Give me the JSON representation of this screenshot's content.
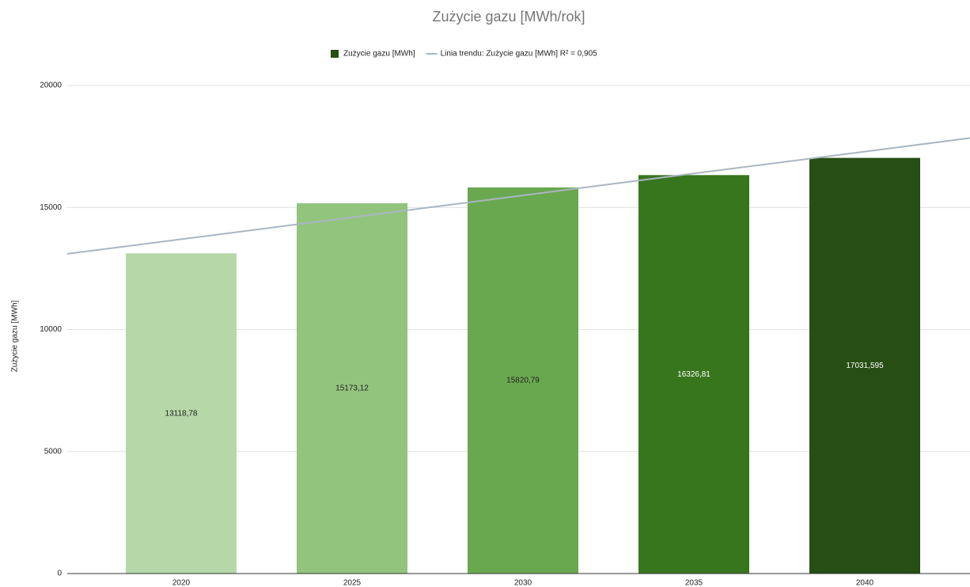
{
  "chart_data": {
    "type": "bar",
    "title": "Zużycie gazu [MWh/rok]",
    "y_label": "Zużycie gazu [MWh]",
    "categories": [
      "2020",
      "2025",
      "2030",
      "2035",
      "2040"
    ],
    "series": [
      {
        "name": "Zużycie gazu [MWh]",
        "color": "#274e13",
        "colors": [
          "#b6d7a8",
          "#93c47d",
          "#6aa84f",
          "#38761d",
          "#274e13"
        ],
        "label_colors": [
          "#222222",
          "#222222",
          "#222222",
          "#ffffff",
          "#ffffff"
        ],
        "values": [
          13118.78,
          15173.12,
          15820.79,
          16326.81,
          17031.595
        ],
        "value_labels": [
          "13118,78",
          "15173,12",
          "15820,79",
          "16326,81",
          "17031,595"
        ]
      },
      {
        "name": "Linia trendu: Zużycie gazu [MWh] R² = 0,905",
        "type": "line",
        "color": "#a9b6c2",
        "values": [
          13698.36,
          14596.29,
          15494.22,
          16392.15,
          17290.08
        ]
      }
    ],
    "ylim": [
      0,
      20000
    ],
    "yticks": [
      0,
      5000,
      10000,
      15000,
      20000
    ],
    "grid": true,
    "legend": "top"
  }
}
